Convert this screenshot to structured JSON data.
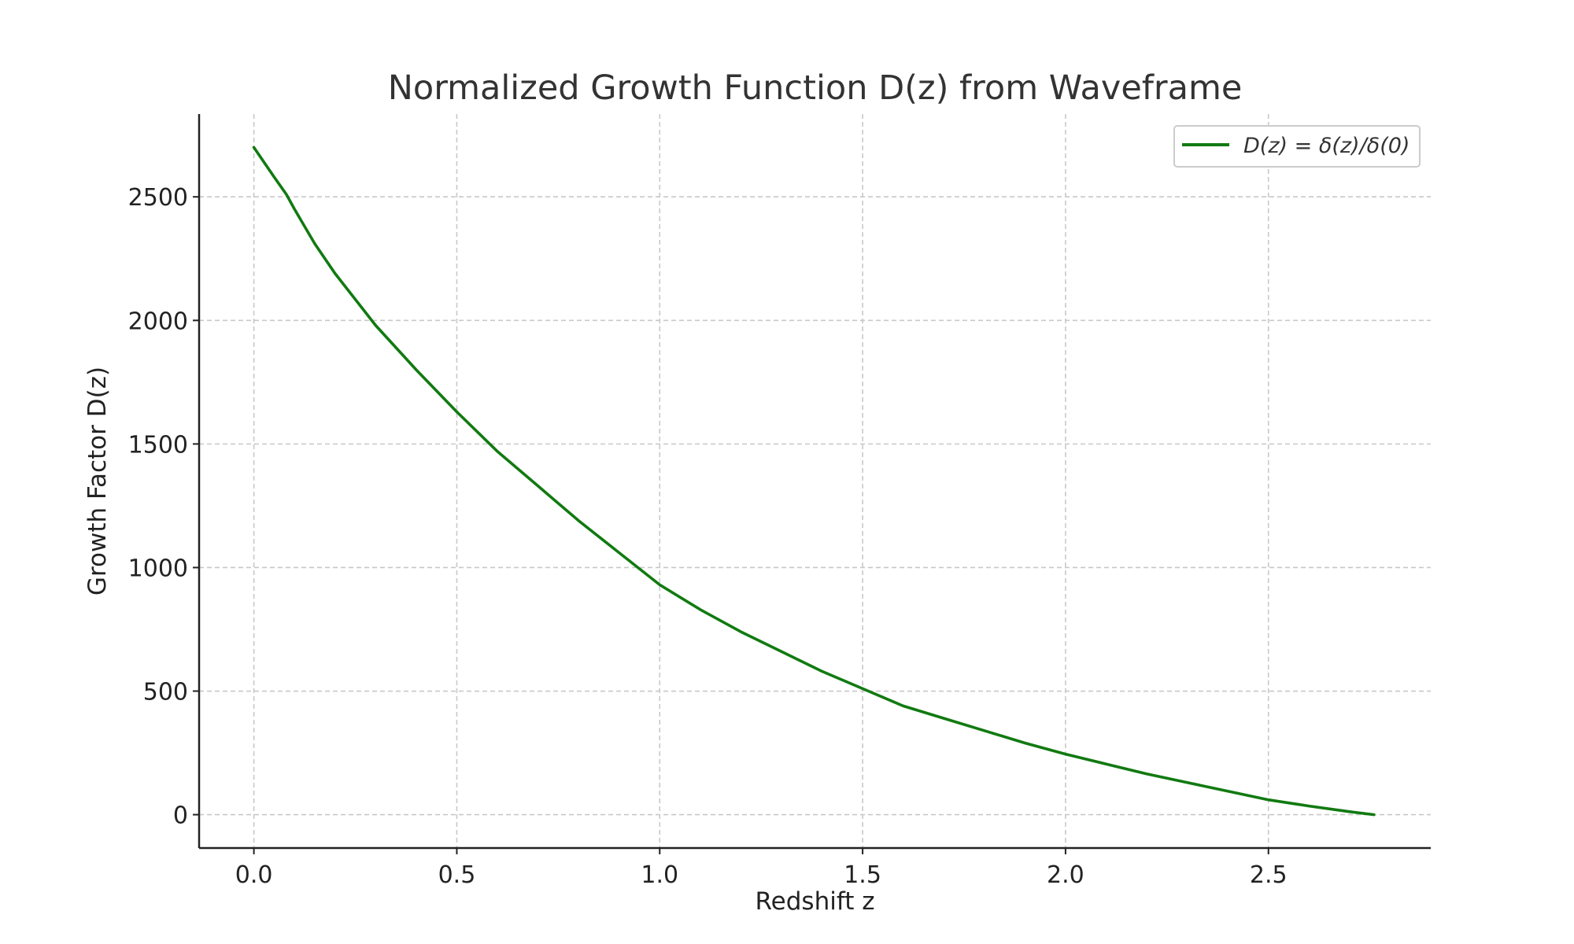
{
  "chart_data": {
    "type": "line",
    "title": "Normalized Growth Function D(z) from Waveframe",
    "xlabel": "Redshift z",
    "ylabel": "Growth Factor D(z)",
    "xlim": [
      -0.135,
      2.9
    ],
    "ylim": [
      -135,
      2835
    ],
    "x_ticks": [
      0.0,
      0.5,
      1.0,
      1.5,
      2.0,
      2.5
    ],
    "x_tick_labels": [
      "0.0",
      "0.5",
      "1.0",
      "1.5",
      "2.0",
      "2.5"
    ],
    "y_ticks": [
      0,
      500,
      1000,
      1500,
      2000,
      2500
    ],
    "y_tick_labels": [
      "0",
      "500",
      "1000",
      "1500",
      "2000",
      "2500"
    ],
    "grid": true,
    "legend_position": "top-right",
    "series": [
      {
        "name": "D(z) = δ(z)/δ(0)",
        "color": "#117a11",
        "x": [
          0.0,
          0.05,
          0.08,
          0.1,
          0.15,
          0.2,
          0.3,
          0.4,
          0.5,
          0.6,
          0.7,
          0.8,
          0.9,
          1.0,
          1.1,
          1.2,
          1.3,
          1.4,
          1.5,
          1.6,
          1.7,
          1.8,
          1.9,
          2.0,
          2.1,
          2.2,
          2.3,
          2.4,
          2.5,
          2.6,
          2.7,
          2.76
        ],
        "y": [
          2700,
          2580,
          2510,
          2450,
          2310,
          2190,
          1980,
          1800,
          1630,
          1470,
          1330,
          1190,
          1060,
          930,
          830,
          740,
          660,
          580,
          510,
          440,
          390,
          340,
          290,
          245,
          205,
          165,
          130,
          95,
          60,
          35,
          12,
          0
        ]
      }
    ]
  }
}
